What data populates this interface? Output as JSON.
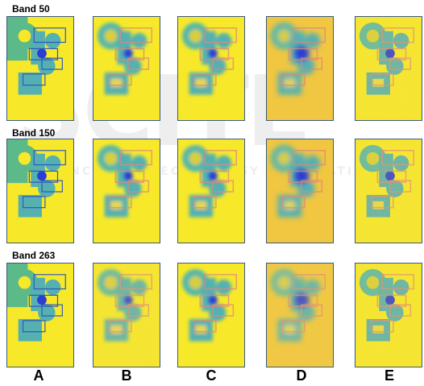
{
  "row_labels": [
    "Band 50",
    "Band 150",
    "Band 263"
  ],
  "column_labels": [
    "A",
    "B",
    "C",
    "D",
    "E"
  ],
  "watermark": {
    "logo_text": "SCITEPRESS",
    "tagline": "SCIENCE AND TECHNOLOGY PUBLICATIONS"
  },
  "colors": {
    "background": "#f7e92a",
    "ring": "#58b8a8",
    "body": "#55b0b2",
    "core": "#2d3cd2",
    "rect_outline": "#e08878"
  }
}
